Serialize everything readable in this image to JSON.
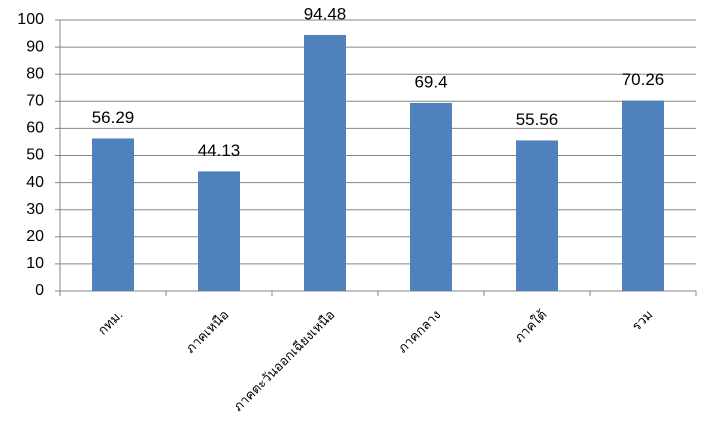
{
  "chart_data": {
    "type": "bar",
    "categories": [
      "กทม.",
      "ภาคเหนือ",
      "ภาคตะวันออกเฉียงเหนือ",
      "ภาคกลาง",
      "ภาคใต้",
      "รวม"
    ],
    "values": [
      56.29,
      44.13,
      94.48,
      69.4,
      55.56,
      70.26
    ],
    "color": "#4f81bd",
    "ylim": [
      0,
      100
    ],
    "yticks": [
      0,
      10,
      20,
      30,
      40,
      50,
      60,
      70,
      80,
      90,
      100
    ],
    "grid": true
  }
}
